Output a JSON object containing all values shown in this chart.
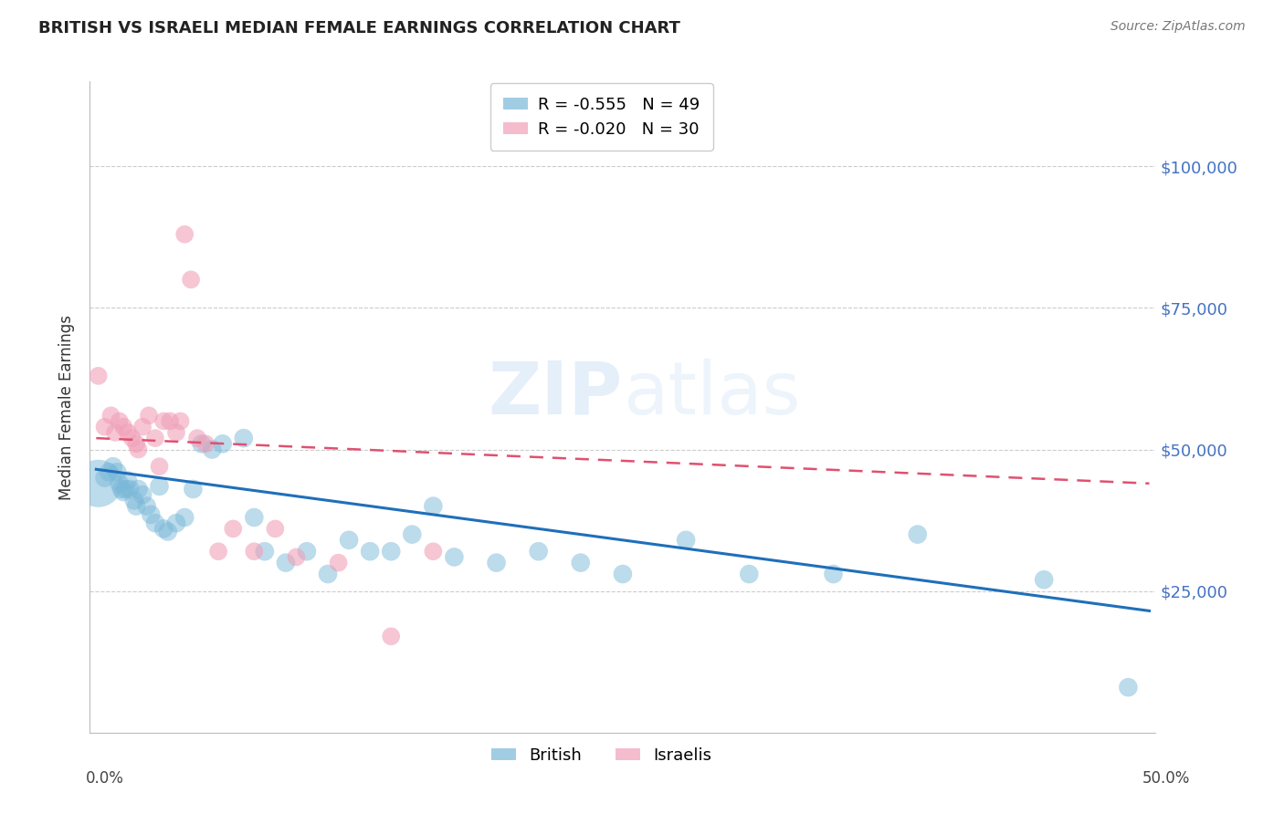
{
  "title": "BRITISH VS ISRAELI MEDIAN FEMALE EARNINGS CORRELATION CHART",
  "source": "Source: ZipAtlas.com",
  "ylabel": "Median Female Earnings",
  "watermark": "ZIPatlas",
  "ylim": [
    0,
    115000
  ],
  "xlim": [
    -0.003,
    0.503
  ],
  "yticks": [
    0,
    25000,
    50000,
    75000,
    100000
  ],
  "british_color": "#7ab8d9",
  "israeli_color": "#f0a0b8",
  "british_line_color": "#1f6fba",
  "israeli_line_color": "#e05070",
  "legend_british_r": "R = -0.555",
  "legend_british_n": "N = 49",
  "legend_israeli_r": "R = -0.020",
  "legend_israeli_n": "N = 30",
  "british_x": [
    0.001,
    0.004,
    0.006,
    0.008,
    0.01,
    0.011,
    0.012,
    0.013,
    0.014,
    0.015,
    0.016,
    0.018,
    0.019,
    0.02,
    0.022,
    0.024,
    0.026,
    0.028,
    0.03,
    0.032,
    0.034,
    0.038,
    0.042,
    0.046,
    0.05,
    0.055,
    0.06,
    0.07,
    0.075,
    0.08,
    0.09,
    0.1,
    0.11,
    0.12,
    0.13,
    0.14,
    0.15,
    0.16,
    0.17,
    0.19,
    0.21,
    0.23,
    0.25,
    0.28,
    0.31,
    0.35,
    0.39,
    0.45,
    0.49
  ],
  "british_y": [
    44000,
    45000,
    46000,
    47000,
    46000,
    44000,
    43000,
    42500,
    43000,
    44500,
    43000,
    41000,
    40000,
    43000,
    42000,
    40000,
    38500,
    37000,
    43500,
    36000,
    35500,
    37000,
    38000,
    43000,
    51000,
    50000,
    51000,
    52000,
    38000,
    32000,
    30000,
    32000,
    28000,
    34000,
    32000,
    32000,
    35000,
    40000,
    31000,
    30000,
    32000,
    30000,
    28000,
    34000,
    28000,
    28000,
    35000,
    27000,
    8000
  ],
  "british_sizes": [
    1400,
    220,
    220,
    220,
    220,
    220,
    220,
    220,
    220,
    220,
    220,
    220,
    220,
    220,
    220,
    220,
    220,
    220,
    220,
    220,
    220,
    220,
    220,
    220,
    220,
    220,
    220,
    220,
    220,
    220,
    220,
    220,
    220,
    220,
    220,
    220,
    220,
    220,
    220,
    220,
    220,
    220,
    220,
    220,
    220,
    220,
    220,
    220,
    220
  ],
  "israeli_x": [
    0.001,
    0.004,
    0.007,
    0.009,
    0.011,
    0.013,
    0.015,
    0.017,
    0.019,
    0.02,
    0.022,
    0.025,
    0.028,
    0.03,
    0.032,
    0.035,
    0.038,
    0.04,
    0.042,
    0.045,
    0.048,
    0.052,
    0.058,
    0.065,
    0.075,
    0.085,
    0.095,
    0.115,
    0.14,
    0.16
  ],
  "israeli_y": [
    63000,
    54000,
    56000,
    53000,
    55000,
    54000,
    53000,
    52000,
    51000,
    50000,
    54000,
    56000,
    52000,
    47000,
    55000,
    55000,
    53000,
    55000,
    88000,
    80000,
    52000,
    51000,
    32000,
    36000,
    32000,
    36000,
    31000,
    30000,
    17000,
    32000
  ],
  "title_color": "#222222",
  "source_color": "#777777",
  "ylabel_color": "#333333",
  "right_tick_color": "#4472c4",
  "grid_color": "#cccccc",
  "background_color": "#ffffff"
}
